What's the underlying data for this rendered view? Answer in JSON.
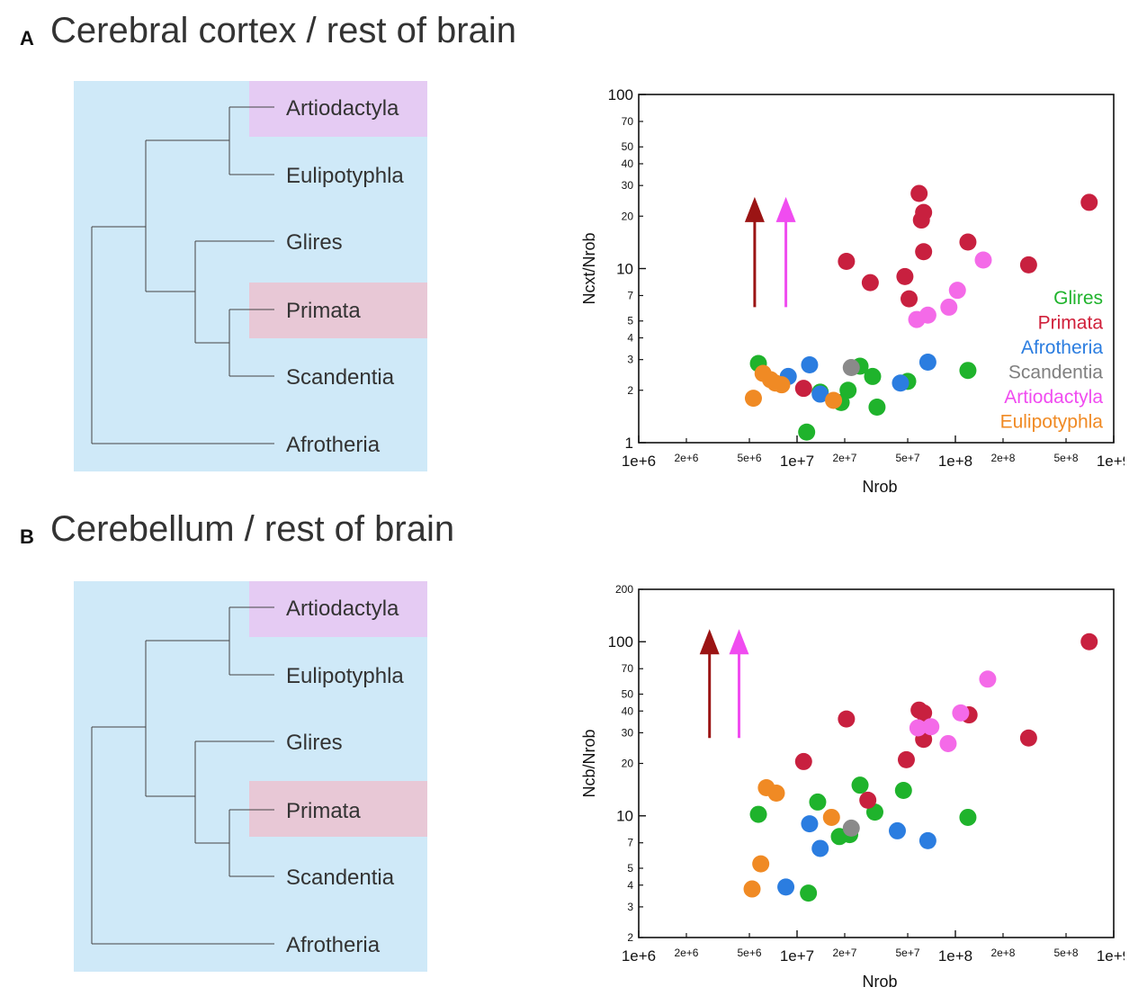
{
  "panels": [
    {
      "letter": "A",
      "title": "Cerebral cortex / rest of brain",
      "tree": {
        "taxa": [
          "Artiodactyla",
          "Eulipotyphla",
          "Glires",
          "Primata",
          "Scandentia",
          "Afrotheria"
        ],
        "highlighted": {
          "Artiodactyla": "#e5cbf3",
          "Primata": "#e8c8d6"
        },
        "background": "#cfe9f8"
      }
    },
    {
      "letter": "B",
      "title": "Cerebellum / rest of brain",
      "tree": {
        "taxa": [
          "Artiodactyla",
          "Eulipotyphla",
          "Glires",
          "Primata",
          "Scandentia",
          "Afrotheria"
        ],
        "highlighted": {
          "Artiodactyla": "#e5cbf3",
          "Primata": "#e8c8d6"
        },
        "background": "#cfe9f8"
      }
    }
  ],
  "chart_data": [
    {
      "type": "scatter",
      "xlabel": "Nrob",
      "ylabel": "Ncxt/Nrob",
      "xscale": "log",
      "yscale": "log",
      "xlim": [
        1000000,
        1000000000
      ],
      "ylim": [
        1,
        100
      ],
      "x_ticks_major": [
        "1e+6",
        "1e+7",
        "1e+8",
        "1e+9"
      ],
      "x_ticks_minor": [
        "2e+6",
        "5e+6",
        "2e+7",
        "5e+7",
        "2e+8",
        "5e+8"
      ],
      "y_ticks_major": [
        "1",
        "10",
        "100"
      ],
      "y_ticks_minor": [
        "2",
        "3",
        "4",
        "5",
        "7",
        "20",
        "30",
        "40",
        "50",
        "70"
      ],
      "legend": {
        "position": "right",
        "entries": [
          {
            "name": "Glires",
            "color": "#1fb32c"
          },
          {
            "name": "Primata",
            "color": "#d0203a"
          },
          {
            "name": "Afrotheria",
            "color": "#2b7de0"
          },
          {
            "name": "Scandentia",
            "color": "#7f7f7f"
          },
          {
            "name": "Artiodactyla",
            "color": "#f04cf0"
          },
          {
            "name": "Eulipotyphla",
            "color": "#f08a24"
          }
        ]
      },
      "arrows": [
        {
          "x": 5400000,
          "y_from": 6,
          "y_to": 24,
          "color": "#9b1414"
        },
        {
          "x": 8500000,
          "y_from": 6,
          "y_to": 24,
          "color": "#f04cf0"
        }
      ],
      "series": [
        {
          "name": "Glires",
          "color": "#1fb32c",
          "points": [
            [
              5700000,
              2.85
            ],
            [
              14000000,
              1.95
            ],
            [
              11500000,
              1.15
            ],
            [
              21000000,
              2.0
            ],
            [
              19000000,
              1.7
            ],
            [
              25000000,
              2.75
            ],
            [
              30000000,
              2.4
            ],
            [
              32000000,
              1.6
            ],
            [
              50000000,
              2.25
            ],
            [
              120000000,
              2.6
            ]
          ]
        },
        {
          "name": "Primata",
          "color": "#c8203f",
          "points": [
            [
              11000000,
              2.05
            ],
            [
              20500000,
              11.0
            ],
            [
              29000000,
              8.3
            ],
            [
              48000000,
              9.0
            ],
            [
              51000000,
              6.7
            ],
            [
              59000000,
              27.0
            ],
            [
              61000000,
              19.0
            ],
            [
              63000000,
              21.0
            ],
            [
              63000000,
              12.5
            ],
            [
              120000000,
              14.2
            ],
            [
              290000000,
              10.5
            ],
            [
              700000000,
              24.0
            ]
          ]
        },
        {
          "name": "Afrotheria",
          "color": "#2b7de0",
          "points": [
            [
              8800000,
              2.4
            ],
            [
              12000000,
              2.8
            ],
            [
              14000000,
              1.9
            ],
            [
              45000000,
              2.2
            ],
            [
              67000000,
              2.9
            ]
          ]
        },
        {
          "name": "Scandentia",
          "color": "#8a8a8a",
          "points": [
            [
              22000000,
              2.7
            ]
          ]
        },
        {
          "name": "Artiodactyla",
          "color": "#f46ae8",
          "points": [
            [
              57000000,
              5.1
            ],
            [
              67000000,
              5.4
            ],
            [
              91000000,
              6.0
            ],
            [
              103000000,
              7.5
            ],
            [
              150000000,
              11.2
            ]
          ]
        },
        {
          "name": "Eulipotyphla",
          "color": "#f08a24",
          "points": [
            [
              5300000,
              1.8
            ],
            [
              6100000,
              2.5
            ],
            [
              6800000,
              2.3
            ],
            [
              7300000,
              2.2
            ],
            [
              8000000,
              2.15
            ],
            [
              17000000,
              1.75
            ]
          ]
        }
      ]
    },
    {
      "type": "scatter",
      "xlabel": "Nrob",
      "ylabel": "Ncb/Nrob",
      "xscale": "log",
      "yscale": "log",
      "xlim": [
        1000000,
        1000000000
      ],
      "ylim": [
        2,
        200
      ],
      "x_ticks_major": [
        "1e+6",
        "1e+7",
        "1e+8",
        "1e+9"
      ],
      "x_ticks_minor": [
        "2e+6",
        "5e+6",
        "2e+7",
        "5e+7",
        "2e+8",
        "5e+8"
      ],
      "y_ticks_major": [
        "10",
        "100"
      ],
      "y_ticks_minor": [
        "2",
        "3",
        "4",
        "5",
        "7",
        "20",
        "30",
        "40",
        "50",
        "70",
        "200"
      ],
      "arrows": [
        {
          "x": 2800000,
          "y_from": 28,
          "y_to": 110,
          "color": "#9b1414"
        },
        {
          "x": 4300000,
          "y_from": 28,
          "y_to": 110,
          "color": "#f04cf0"
        }
      ],
      "series": [
        {
          "name": "Glires",
          "color": "#1fb32c",
          "points": [
            [
              5700000,
              10.2
            ],
            [
              13500000,
              12.0
            ],
            [
              11800000,
              3.6
            ],
            [
              18500000,
              7.6
            ],
            [
              21500000,
              7.8
            ],
            [
              25000000,
              15.0
            ],
            [
              31000000,
              10.5
            ],
            [
              47000000,
              14.0
            ],
            [
              120000000,
              9.8
            ]
          ]
        },
        {
          "name": "Primata",
          "color": "#c8203f",
          "points": [
            [
              11000000,
              20.5
            ],
            [
              20500000,
              36.0
            ],
            [
              28000000,
              12.3
            ],
            [
              49000000,
              21.0
            ],
            [
              59000000,
              40.5
            ],
            [
              63000000,
              39.0
            ],
            [
              63000000,
              27.5
            ],
            [
              122000000,
              38.0
            ],
            [
              290000000,
              28.0
            ],
            [
              700000000,
              100.0
            ]
          ]
        },
        {
          "name": "Afrotheria",
          "color": "#2b7de0",
          "points": [
            [
              8500000,
              3.9
            ],
            [
              12000000,
              9.0
            ],
            [
              14000000,
              6.5
            ],
            [
              43000000,
              8.2
            ],
            [
              67000000,
              7.2
            ]
          ]
        },
        {
          "name": "Scandentia",
          "color": "#8a8a8a",
          "points": [
            [
              22000000,
              8.5
            ]
          ]
        },
        {
          "name": "Artiodactyla",
          "color": "#f46ae8",
          "points": [
            [
              58000000,
              32.0
            ],
            [
              70000000,
              32.5
            ],
            [
              90000000,
              26.0
            ],
            [
              108000000,
              39.0
            ],
            [
              160000000,
              61.0
            ]
          ]
        },
        {
          "name": "Eulipotyphla",
          "color": "#f08a24",
          "points": [
            [
              5200000,
              3.8
            ],
            [
              5900000,
              5.3
            ],
            [
              6400000,
              14.5
            ],
            [
              7400000,
              13.5
            ],
            [
              16500000,
              9.8
            ]
          ]
        }
      ]
    }
  ]
}
